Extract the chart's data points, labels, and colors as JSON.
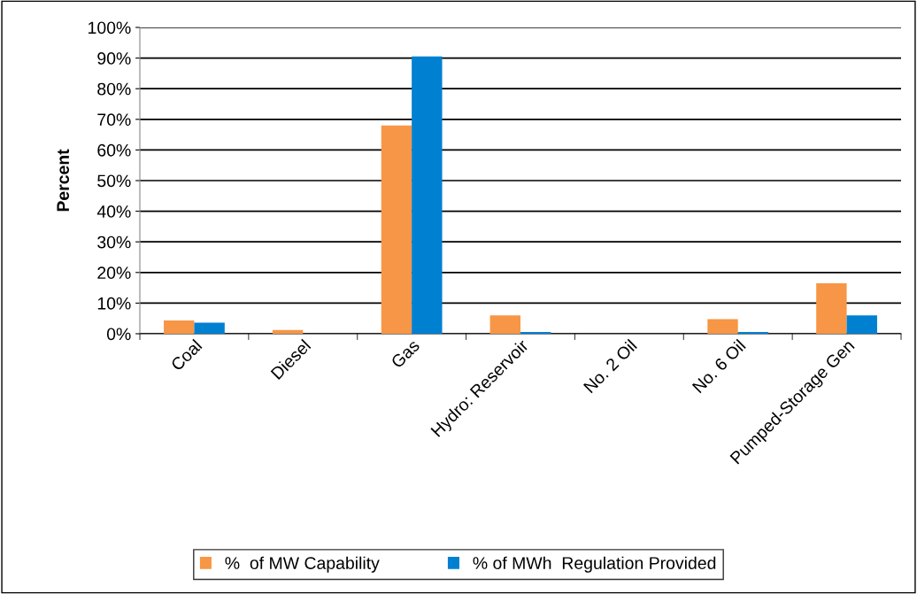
{
  "chart_data": {
    "type": "bar",
    "ylabel": "Percent",
    "categories": [
      "Coal",
      "Diesel",
      "Gas",
      "Hydro: Reservoir",
      "No. 2 Oil",
      "No. 6 Oil",
      "Pumped-Storage Gen"
    ],
    "series": [
      {
        "name": "%  of MW Capability",
        "color": "#f79646",
        "values": [
          4.3,
          1.2,
          68,
          6,
          0,
          4.8,
          16.5
        ]
      },
      {
        "name": "% of MWh  Regulation Provided",
        "color": "#0080d0",
        "values": [
          3.6,
          0,
          90.5,
          0.6,
          0,
          0.6,
          6
        ]
      }
    ],
    "ylim": [
      0,
      100
    ],
    "yticks": [
      {
        "value": 0,
        "label": "0%"
      },
      {
        "value": 10,
        "label": "10%"
      },
      {
        "value": 20,
        "label": "20%"
      },
      {
        "value": 30,
        "label": "30%"
      },
      {
        "value": 40,
        "label": "40%"
      },
      {
        "value": 50,
        "label": "50%"
      },
      {
        "value": 60,
        "label": "60%"
      },
      {
        "value": 70,
        "label": "70%"
      },
      {
        "value": 80,
        "label": "80%"
      },
      {
        "value": 90,
        "label": "90%"
      },
      {
        "value": 100,
        "label": "100%"
      }
    ],
    "grid": "y",
    "legend": "bottom"
  }
}
